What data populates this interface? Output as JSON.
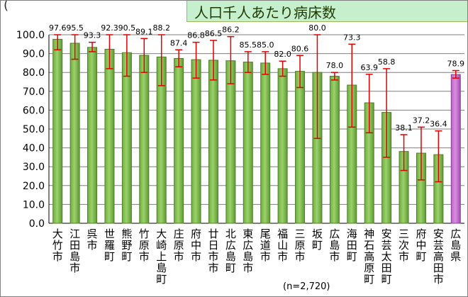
{
  "header": {
    "left_paren": "(",
    "title": "人口千人あたり病床数"
  },
  "note": "(n=2,720)",
  "chart_data": {
    "type": "bar",
    "categories": [
      "大竹市",
      "江田島市",
      "呉市",
      "世羅町",
      "熊野町",
      "竹原市",
      "大崎上島町",
      "庄原市",
      "府中市",
      "廿日市市",
      "北広島町",
      "東広島市",
      "尾道市",
      "福山市",
      "三原市",
      "坂町",
      "広島市",
      "海田町",
      "神石高原町",
      "安芸太田町",
      "三次市",
      "府中町",
      "安芸高田市",
      "広島県"
    ],
    "values": [
      97.6,
      95.5,
      93.3,
      92.3,
      90.5,
      89.1,
      88.2,
      87.4,
      86.8,
      86.5,
      86.2,
      85.5,
      85.0,
      82.0,
      80.6,
      80.0,
      78.0,
      73.3,
      63.9,
      58.8,
      38.1,
      37.2,
      36.4,
      78.9
    ],
    "error_low": [
      92,
      87,
      91,
      82,
      78,
      80,
      73,
      83,
      77,
      76,
      74,
      80,
      79,
      78,
      72,
      45,
      76,
      51,
      48,
      35,
      28,
      23,
      22,
      77
    ],
    "error_high": [
      100,
      100,
      96,
      100,
      100,
      98,
      100,
      92,
      96,
      97,
      99,
      91,
      91,
      86,
      89,
      100,
      80,
      95,
      79,
      82,
      47,
      51,
      49,
      81
    ],
    "ylim": [
      0,
      100
    ],
    "yticks": [
      "0.0",
      "10.0",
      "20.0",
      "30.0",
      "40.0",
      "50.0",
      "60.0",
      "70.0",
      "80.0",
      "90.0",
      "100.0"
    ],
    "highlight_index": 23,
    "colors": {
      "bar_fill": "#9bd16a",
      "bar_edge": "#4f7f2a",
      "highlight_fill": "#d98ce0",
      "highlight_edge": "#8a3f96",
      "error_bar": "#e00000",
      "grid": "#7f7f7f"
    },
    "grid": true
  }
}
